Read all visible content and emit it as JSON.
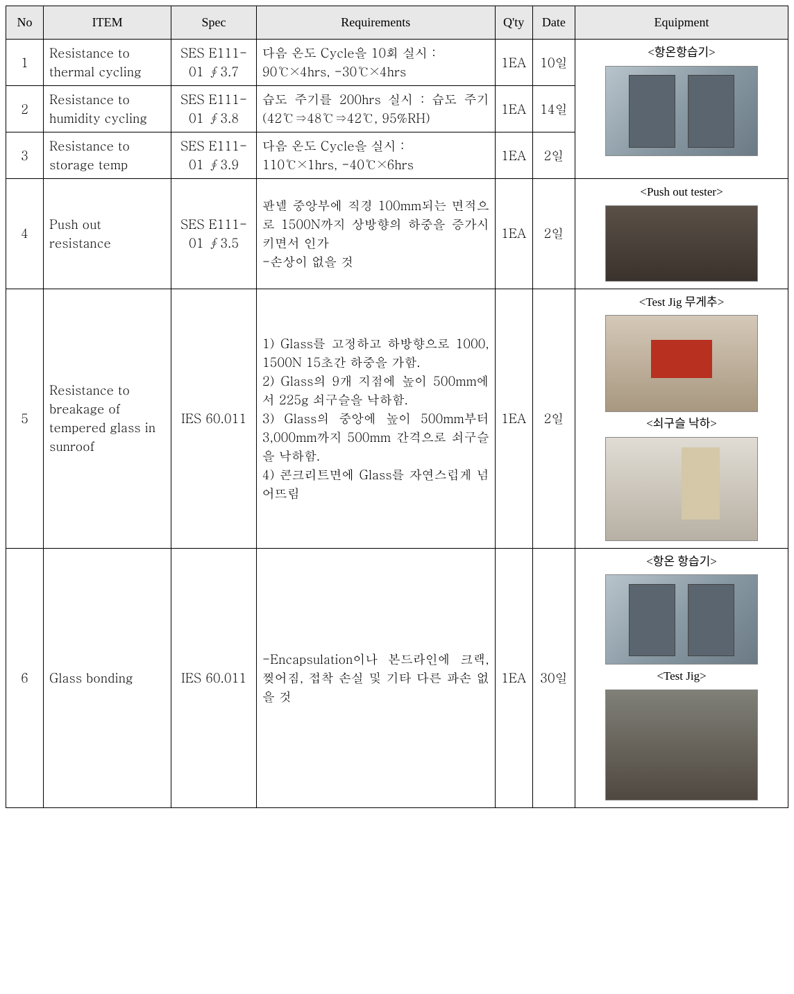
{
  "headers": {
    "no": "No",
    "item": "ITEM",
    "spec": "Spec",
    "requirements": "Requirements",
    "qty": "Q'ty",
    "date": "Date",
    "equipment": "Equipment"
  },
  "rows": [
    {
      "no": "1",
      "item": "Resistance to thermal cycling",
      "spec": "SES E111-01 ∮3.7",
      "req": "다음 온도 Cycle을 10회 실시 :\n90℃×4hrs, -30℃×4hrs",
      "qty": "1EA",
      "date": "10일",
      "equip_label": "<항온항습기>",
      "equip_img": "chamber"
    },
    {
      "no": "2",
      "item": "Resistance to humidity cycling",
      "spec": "SES E111-01 ∮3.8",
      "req": "습도 주기를 200hrs 실시 : 습도 주기(42℃⇒48℃⇒42℃, 95%RH)",
      "qty": "1EA",
      "date": "14일"
    },
    {
      "no": "3",
      "item": "Resistance to storage temp",
      "spec": "SES E111-01 ∮3.9",
      "req": "다음 온도 Cycle을 실시 :\n110℃×1hrs, -40℃×6hrs",
      "qty": "1EA",
      "date": "2일"
    },
    {
      "no": "4",
      "item": "Push out resistance",
      "spec": "SES E111-01 ∮3.5",
      "req": "판넬 중앙부에 직경 100mm되는 면적으로 1500N까지 상방향의 하중을 증가시키면서 인가\n-손상이 없을 것",
      "qty": "1EA",
      "date": "2일",
      "equip_label": "<Push out tester>",
      "equip_img": "tester"
    },
    {
      "no": "5",
      "item": "Resistance to breakage of tempered glass in sunroof",
      "spec": "IES 60.011",
      "req": "1) Glass를 고정하고 하방향으로 1000, 1500N 15초간 하중을 가함.\n2) Glass의 9개 지점에 높이 500mm에서 225g 쇠구슬을 낙하함.\n3) Glass의 중앙에 높이 500mm부터 3,000mm까지 500mm 간격으로 쇠구슬을 낙하함.\n4) 콘크리트면에 Glass를 자연스럽게 넘어뜨림",
      "qty": "1EA",
      "date": "2일",
      "equip_label1": "<Test Jig 무게추>",
      "equip_img1": "jig",
      "equip_label2": "<쇠구슬 낙하>",
      "equip_img2": "drop"
    },
    {
      "no": "6",
      "item": "Glass bonding",
      "spec": "IES 60.011",
      "req": "-Encapsulation이나 본드라인에 크랙, 찢어짐, 접착 손실 및 기타 다른 파손 없을 것",
      "qty": "1EA",
      "date": "30일",
      "equip_label1": "<항온 항습기>",
      "equip_img1": "chamber",
      "equip_label2": "<Test Jig>",
      "equip_img2": "testjig2"
    }
  ]
}
